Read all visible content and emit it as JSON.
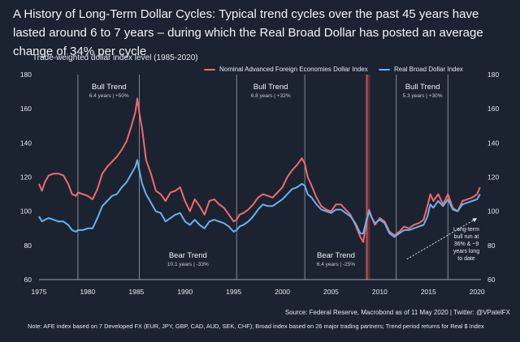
{
  "header": {
    "title": "A History of Long-Term Dollar Cycles: Typical trend cycles over the past 45 years have lasted around 6 to 7 years – during which the Real Broad Dollar has posted an average change of 34% per cycle"
  },
  "footer": {
    "source": "Source: Federal Reserve, Macrobond as of 11 May 2020 | Twitter: @VPatelFX",
    "note": "Note: AFE index based on 7 Developed FX (EUR, JPY, GBP, CAD, AUD, SEK, CHF); Broad index based on 26 major trading partners; Trend period returns for Real $ Index"
  },
  "chart_data": {
    "type": "line",
    "subtitle": "Trade-weighted dollar index level (1985-2020)",
    "xlim": [
      1975,
      2020.4
    ],
    "ylim": [
      60,
      180
    ],
    "xticks": [
      1975,
      1980,
      1985,
      1990,
      1995,
      2000,
      2005,
      2010,
      2015,
      2020
    ],
    "yticks": [
      60,
      80,
      100,
      120,
      140,
      160,
      180
    ],
    "grid": false,
    "legend_position": "top-right",
    "colors": {
      "nominal": "#f2686f",
      "real": "#68b2f1",
      "shading": "#7a2a36",
      "divider": "#c9ced6",
      "background": "#1b2330"
    },
    "series": [
      {
        "name": "Nominal Advanced Foreign Economies Dollar Index",
        "x": [
          1975,
          1975.3,
          1975.6,
          1976,
          1976.5,
          1977,
          1977.5,
          1978,
          1978.4,
          1978.8,
          1979,
          1979.5,
          1980,
          1980.5,
          1981,
          1981.5,
          1982,
          1982.5,
          1983,
          1983.5,
          1984,
          1984.5,
          1984.9,
          1985.1,
          1985.3,
          1985.6,
          1986,
          1986.5,
          1987,
          1987.5,
          1988,
          1988.5,
          1989,
          1989.5,
          1990,
          1990.5,
          1991,
          1991.5,
          1992,
          1992.5,
          1993,
          1993.5,
          1994,
          1994.5,
          1995,
          1995.3,
          1995.6,
          1996,
          1996.5,
          1997,
          1997.5,
          1998,
          1998.5,
          1999,
          1999.5,
          2000,
          2000.5,
          2001,
          2001.5,
          2002,
          2002.3,
          2002.6,
          2003,
          2003.5,
          2004,
          2004.5,
          2005,
          2005.5,
          2006,
          2006.5,
          2007,
          2007.5,
          2008,
          2008.3,
          2008.6,
          2008.9,
          2009.2,
          2009.5,
          2010,
          2010.5,
          2011,
          2011.5,
          2012,
          2012.5,
          2013,
          2013.5,
          2014,
          2014.5,
          2014.9,
          2015.2,
          2015.5,
          2016,
          2016.5,
          2017,
          2017.5,
          2018,
          2018.5,
          2019,
          2019.5,
          2020,
          2020.3
        ],
        "values": [
          116,
          112,
          117,
          121,
          122,
          122,
          121,
          116,
          110,
          109,
          111,
          110,
          109,
          107,
          113,
          122,
          126,
          129,
          132,
          136,
          141,
          150,
          158,
          166,
          158,
          148,
          130,
          122,
          112,
          110,
          106,
          111,
          112,
          114,
          106,
          100,
          107,
          103,
          98,
          106,
          107,
          104,
          102,
          98,
          94,
          95,
          98,
          99,
          101,
          104,
          108,
          110,
          109,
          108,
          111,
          114,
          120,
          124,
          127,
          131,
          128,
          120,
          115,
          108,
          103,
          101,
          100,
          104,
          104,
          101,
          98,
          92,
          85,
          82,
          92,
          101,
          96,
          92,
          96,
          94,
          88,
          86,
          88,
          91,
          90,
          92,
          93,
          95,
          103,
          110,
          106,
          110,
          104,
          110,
          102,
          100,
          106,
          107,
          108,
          110,
          114
        ]
      },
      {
        "name": "Real Broad Dollar Index",
        "x": [
          1975,
          1975.3,
          1975.6,
          1976,
          1976.5,
          1977,
          1977.5,
          1978,
          1978.4,
          1978.8,
          1979,
          1979.5,
          1980,
          1980.5,
          1981,
          1981.5,
          1982,
          1982.5,
          1983,
          1983.5,
          1984,
          1984.5,
          1984.9,
          1985.1,
          1985.3,
          1985.6,
          1986,
          1986.5,
          1987,
          1987.5,
          1988,
          1988.5,
          1989,
          1989.5,
          1990,
          1990.5,
          1991,
          1991.5,
          1992,
          1992.5,
          1993,
          1993.5,
          1994,
          1994.5,
          1995,
          1995.3,
          1995.6,
          1996,
          1996.5,
          1997,
          1997.5,
          1998,
          1998.5,
          1999,
          1999.5,
          2000,
          2000.5,
          2001,
          2001.5,
          2002,
          2002.3,
          2002.6,
          2003,
          2003.5,
          2004,
          2004.5,
          2005,
          2005.5,
          2006,
          2006.5,
          2007,
          2007.5,
          2008,
          2008.3,
          2008.6,
          2008.9,
          2009.2,
          2009.5,
          2010,
          2010.5,
          2011,
          2011.5,
          2012,
          2012.5,
          2013,
          2013.5,
          2014,
          2014.5,
          2014.9,
          2015.2,
          2015.5,
          2016,
          2016.5,
          2017,
          2017.5,
          2018,
          2018.5,
          2019,
          2019.5,
          2020,
          2020.3
        ],
        "values": [
          97,
          94,
          95,
          96,
          95,
          94,
          94,
          92,
          89,
          88,
          89,
          89,
          90,
          90,
          96,
          103,
          106,
          109,
          110,
          114,
          117,
          122,
          126,
          130,
          124,
          116,
          110,
          105,
          100,
          99,
          94,
          96,
          98,
          99,
          94,
          92,
          95,
          92,
          90,
          94,
          95,
          94,
          93,
          91,
          88,
          89,
          91,
          92,
          94,
          97,
          101,
          104,
          103,
          103,
          105,
          107,
          110,
          113,
          114,
          116,
          115,
          110,
          108,
          104,
          101,
          100,
          99,
          101,
          101,
          99,
          97,
          93,
          87,
          87,
          94,
          100,
          96,
          93,
          95,
          93,
          87,
          85,
          87,
          89,
          89,
          90,
          91,
          92,
          97,
          104,
          102,
          106,
          103,
          107,
          101,
          100,
          104,
          105,
          106,
          107,
          110
        ]
      }
    ],
    "trend_dividers": [
      1979,
      1985.3,
      1995.3,
      2002.3,
      2008.7,
      2011.7,
      2017
    ],
    "shaded_period": [
      2008.5,
      2009.0
    ],
    "annotations": [
      {
        "title": "Bull Trend",
        "detail": "6.4 years | +50%",
        "x": 1982.2,
        "level": "top"
      },
      {
        "title": "Bull Trend",
        "detail": "6.8 years | +32%",
        "x": 1998.8,
        "level": "top"
      },
      {
        "title": "Bull Trend",
        "detail": "5.3 years | +30%",
        "x": 2014.4,
        "level": "top"
      },
      {
        "title": "Bear Trend",
        "detail": "10.1 years | -33%",
        "x": 1990.3,
        "level": "bottom"
      },
      {
        "title": "Bear Trend",
        "detail": "6.4 years | -25%",
        "x": 2005.5,
        "level": "bottom"
      }
    ],
    "callout": {
      "lines": [
        "Long-term",
        "bull run at",
        "36% & ~9",
        "years long",
        "to date"
      ],
      "arrow_from": [
        2012.8,
        72
      ],
      "arrow_to": [
        2020.0,
        96
      ]
    }
  }
}
